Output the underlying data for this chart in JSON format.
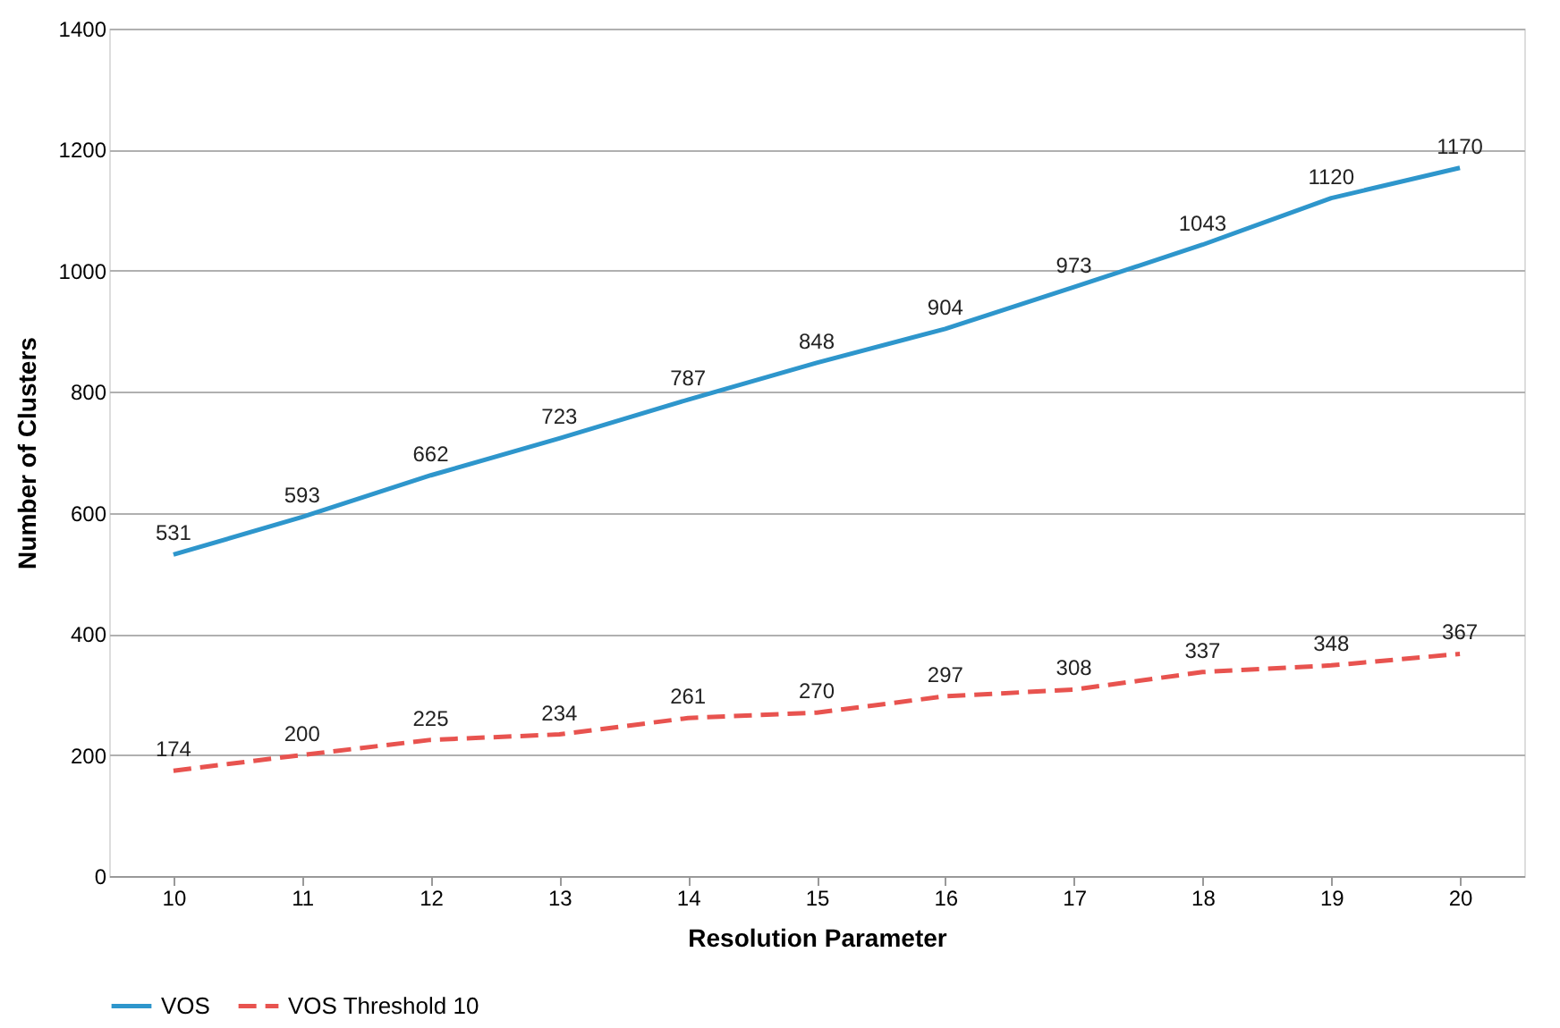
{
  "chart_data": {
    "type": "line",
    "xlabel": "Resolution Parameter",
    "ylabel": "Number of Clusters",
    "categories": [
      "10",
      "11",
      "12",
      "13",
      "14",
      "15",
      "16",
      "17",
      "18",
      "19",
      "20"
    ],
    "series": [
      {
        "name": "VOS",
        "color": "#2e96cc",
        "line_style": "solid",
        "values": [
          531,
          593,
          662,
          723,
          787,
          848,
          904,
          973,
          1043,
          1120,
          1170
        ]
      },
      {
        "name": "VOS Threshold 10",
        "color": "#e8534f",
        "line_style": "dashed",
        "values": [
          174,
          200,
          225,
          234,
          261,
          270,
          297,
          308,
          337,
          348,
          367
        ]
      }
    ],
    "ylim": [
      0,
      1400
    ],
    "yticks": [
      0,
      200,
      400,
      600,
      800,
      1000,
      1200,
      1400
    ],
    "grid": "y",
    "legend": "bottom",
    "data_labels": true
  }
}
